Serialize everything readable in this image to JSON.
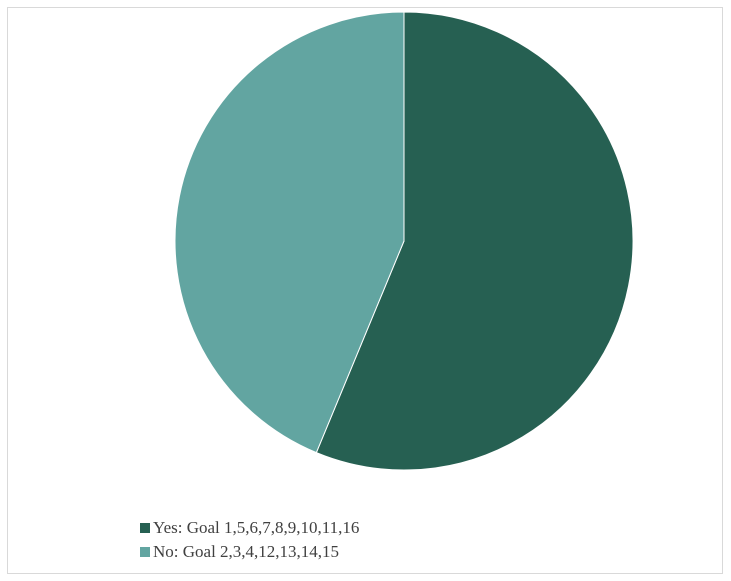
{
  "chart_data": {
    "type": "pie",
    "categories": [
      "Yes: Goal 1,5,6,7,8,9,10,11,16",
      "No: Goal 2,3,4,12,13,14,15"
    ],
    "values": [
      9,
      7
    ],
    "colors": [
      "#266052",
      "#62a5a1"
    ],
    "title": "",
    "legend_position": "bottom"
  }
}
